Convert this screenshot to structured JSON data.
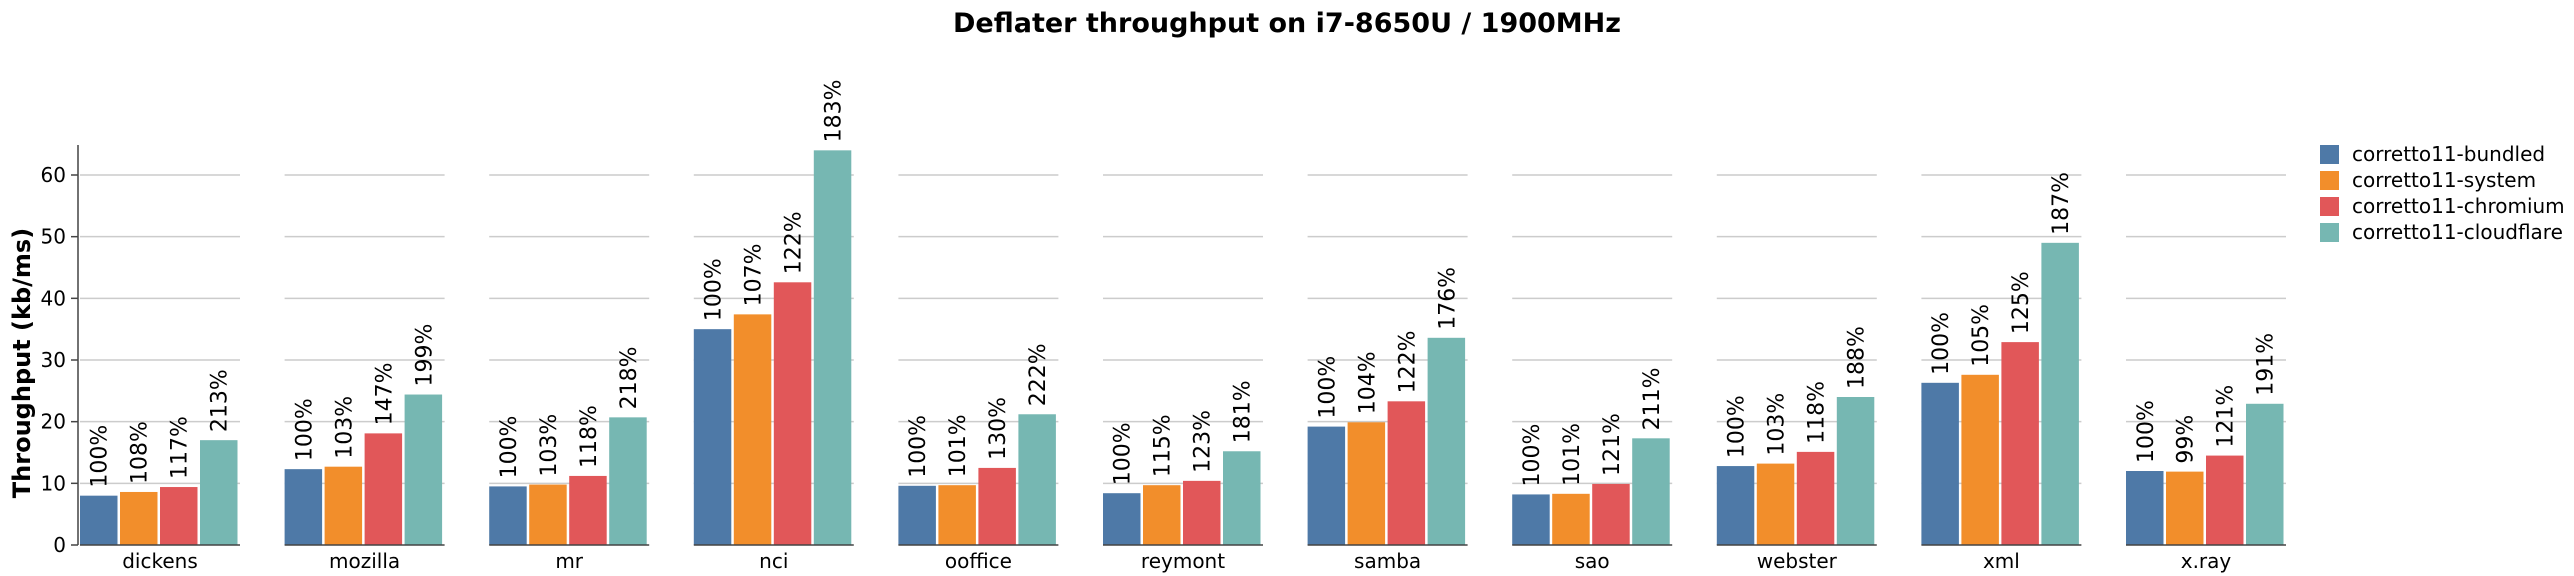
{
  "chart_data": {
    "type": "bar",
    "title": "Deflater throughput on i7-8650U / 1900MHz",
    "ylabel": "Throughput (kb/ms)",
    "xlabel": "",
    "ylim": [
      0,
      65
    ],
    "yticks": [
      0,
      10,
      20,
      30,
      40,
      50,
      60
    ],
    "grid": true,
    "legend_position": "right",
    "categories": [
      "dickens",
      "mozilla",
      "mr",
      "nci",
      "ooffice",
      "reymont",
      "samba",
      "sao",
      "webster",
      "xml",
      "x.ray"
    ],
    "series": [
      {
        "name": "corretto11-bundled",
        "color": "#4e79a7",
        "values": [
          8.0,
          12.3,
          9.5,
          35.0,
          9.6,
          8.4,
          19.2,
          8.2,
          12.8,
          26.3,
          12.0
        ],
        "labels": [
          "100%",
          "100%",
          "100%",
          "100%",
          "100%",
          "100%",
          "100%",
          "100%",
          "100%",
          "100%",
          "100%"
        ]
      },
      {
        "name": "corretto11-system",
        "color": "#f28e2b",
        "values": [
          8.6,
          12.7,
          9.8,
          37.4,
          9.7,
          9.7,
          19.9,
          8.3,
          13.2,
          27.6,
          11.9
        ],
        "labels": [
          "108%",
          "103%",
          "103%",
          "107%",
          "101%",
          "115%",
          "104%",
          "101%",
          "103%",
          "105%",
          "99%"
        ]
      },
      {
        "name": "corretto11-chromium",
        "color": "#e15759",
        "values": [
          9.4,
          18.1,
          11.2,
          42.6,
          12.5,
          10.4,
          23.3,
          9.9,
          15.1,
          32.9,
          14.5
        ],
        "labels": [
          "117%",
          "147%",
          "118%",
          "122%",
          "130%",
          "123%",
          "122%",
          "121%",
          "118%",
          "125%",
          "121%"
        ]
      },
      {
        "name": "corretto11-cloudflare",
        "color": "#76b7b2",
        "values": [
          17.0,
          24.4,
          20.7,
          64.0,
          21.2,
          15.2,
          33.6,
          17.3,
          24.0,
          49.0,
          22.9
        ],
        "labels": [
          "213%",
          "199%",
          "218%",
          "183%",
          "222%",
          "181%",
          "176%",
          "211%",
          "188%",
          "187%",
          "191%"
        ]
      }
    ]
  }
}
